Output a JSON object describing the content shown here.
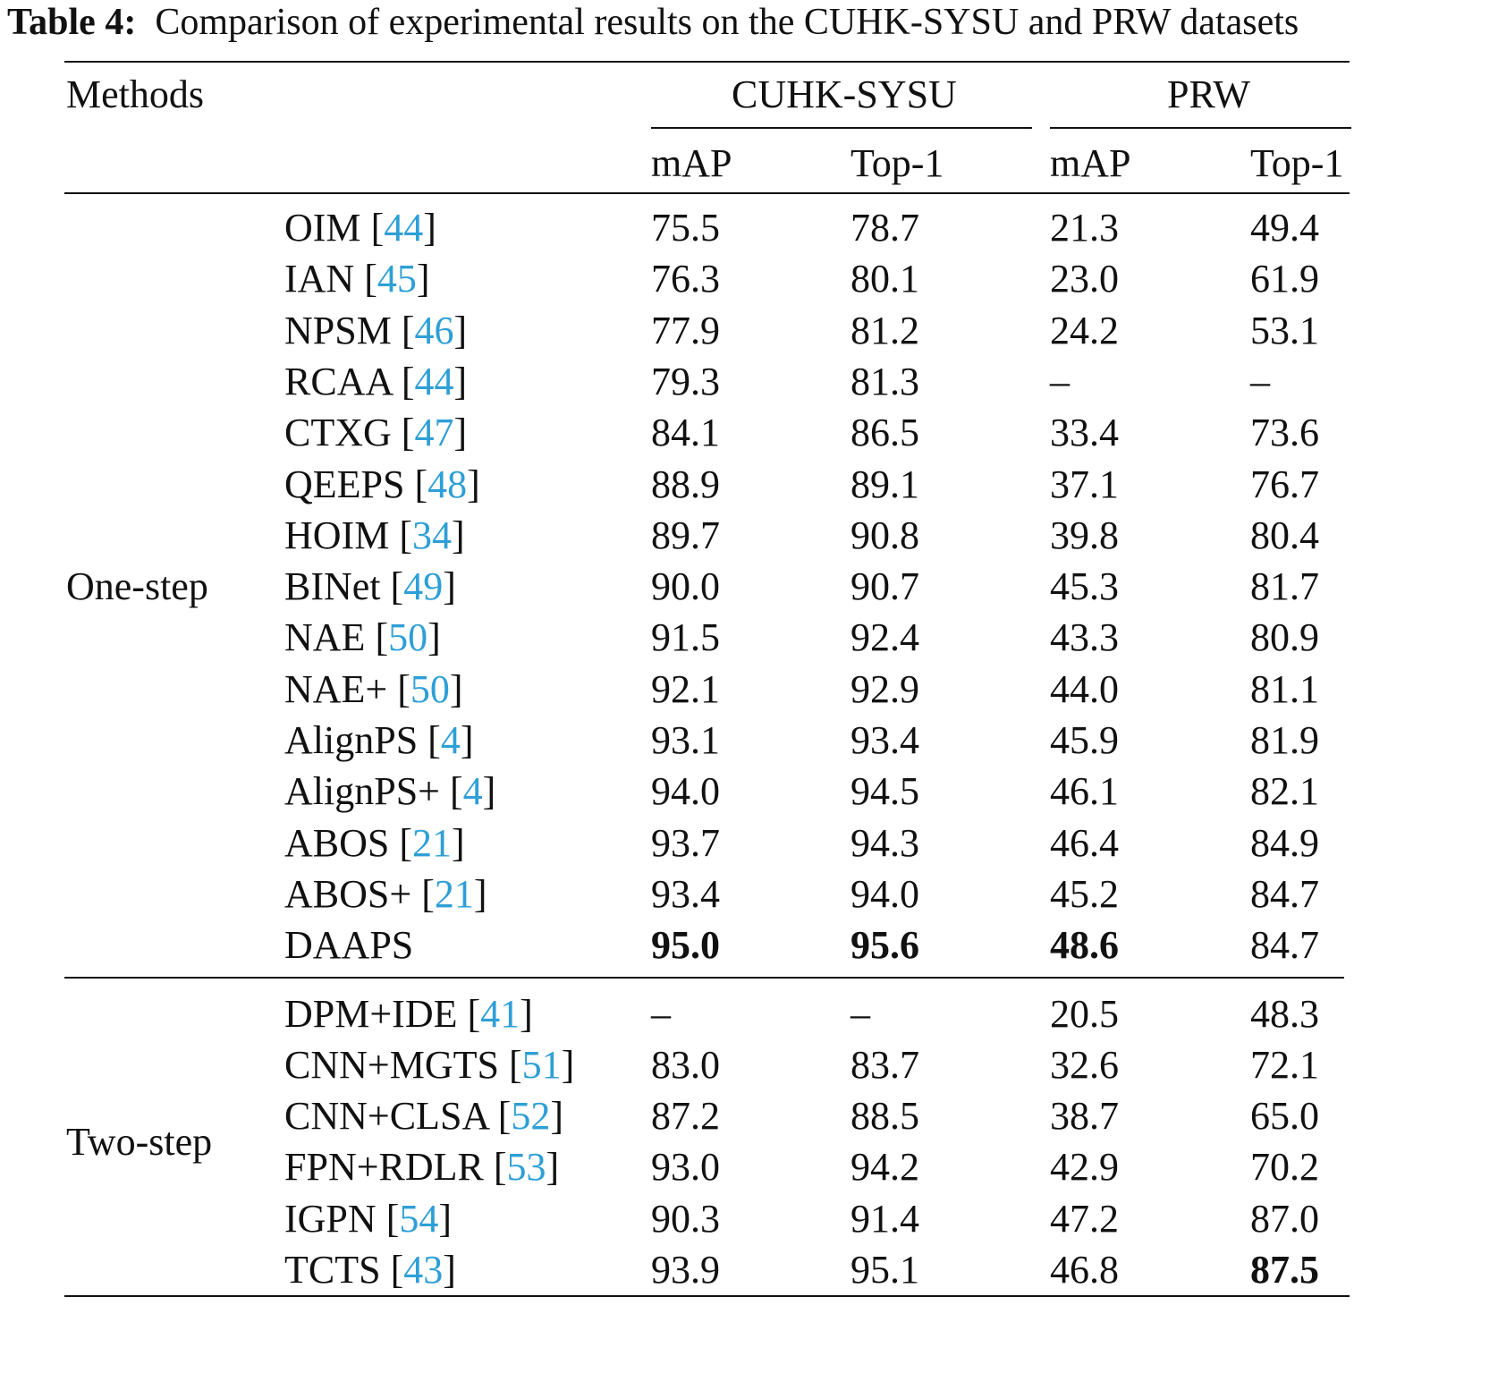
{
  "caption": {
    "label": "Table 4:",
    "text": "Comparison of experimental results on the CUHK-SYSU and PRW datasets"
  },
  "header": {
    "methods": "Methods",
    "dataset1": "CUHK-SYSU",
    "dataset2": "PRW",
    "map": "mAP",
    "top1": "Top-1"
  },
  "groups": [
    {
      "name": "One-step",
      "rows": [
        {
          "method": "OIM",
          "ref": "44",
          "c_map": "75.5",
          "c_top1": "78.7",
          "p_map": "21.3",
          "p_top1": "49.4"
        },
        {
          "method": "IAN",
          "ref": "45",
          "c_map": "76.3",
          "c_top1": "80.1",
          "p_map": "23.0",
          "p_top1": "61.9"
        },
        {
          "method": "NPSM",
          "ref": "46",
          "c_map": "77.9",
          "c_top1": "81.2",
          "p_map": "24.2",
          "p_top1": "53.1"
        },
        {
          "method": "RCAA",
          "ref": "44",
          "c_map": "79.3",
          "c_top1": "81.3",
          "p_map": "–",
          "p_top1": "–"
        },
        {
          "method": "CTXG",
          "ref": "47",
          "c_map": "84.1",
          "c_top1": "86.5",
          "p_map": "33.4",
          "p_top1": "73.6"
        },
        {
          "method": "QEEPS",
          "ref": "48",
          "c_map": "88.9",
          "c_top1": "89.1",
          "p_map": "37.1",
          "p_top1": "76.7"
        },
        {
          "method": "HOIM",
          "ref": "34",
          "c_map": "89.7",
          "c_top1": "90.8",
          "p_map": "39.8",
          "p_top1": "80.4"
        },
        {
          "method": "BINet",
          "ref": "49",
          "c_map": "90.0",
          "c_top1": "90.7",
          "p_map": "45.3",
          "p_top1": "81.7"
        },
        {
          "method": "NAE",
          "ref": "50",
          "c_map": "91.5",
          "c_top1": "92.4",
          "p_map": "43.3",
          "p_top1": "80.9"
        },
        {
          "method": "NAE+",
          "ref": "50",
          "c_map": "92.1",
          "c_top1": "92.9",
          "p_map": "44.0",
          "p_top1": "81.1"
        },
        {
          "method": "AlignPS",
          "ref": "4",
          "c_map": "93.1",
          "c_top1": "93.4",
          "p_map": "45.9",
          "p_top1": "81.9"
        },
        {
          "method": "AlignPS+",
          "ref": "4",
          "c_map": "94.0",
          "c_top1": "94.5",
          "p_map": "46.1",
          "p_top1": "82.1"
        },
        {
          "method": "ABOS",
          "ref": "21",
          "c_map": "93.7",
          "c_top1": "94.3",
          "p_map": "46.4",
          "p_top1": "84.9"
        },
        {
          "method": "ABOS+",
          "ref": "21",
          "c_map": "93.4",
          "c_top1": "94.0",
          "p_map": "45.2",
          "p_top1": "84.7"
        },
        {
          "method": "DAAPS",
          "ref": "",
          "c_map": "95.0",
          "c_top1": "95.6",
          "p_map": "48.6",
          "p_top1": "84.7",
          "bold": [
            "c_map",
            "c_top1",
            "p_map"
          ]
        }
      ]
    },
    {
      "name": "Two-step",
      "rows": [
        {
          "method": "DPM+IDE",
          "ref": "41",
          "c_map": "–",
          "c_top1": "–",
          "p_map": "20.5",
          "p_top1": "48.3"
        },
        {
          "method": "CNN+MGTS",
          "ref": "51",
          "c_map": "83.0",
          "c_top1": "83.7",
          "p_map": "32.6",
          "p_top1": "72.1"
        },
        {
          "method": "CNN+CLSA",
          "ref": "52",
          "c_map": "87.2",
          "c_top1": "88.5",
          "p_map": "38.7",
          "p_top1": "65.0"
        },
        {
          "method": "FPN+RDLR",
          "ref": "53",
          "c_map": "93.0",
          "c_top1": "94.2",
          "p_map": "42.9",
          "p_top1": "70.2"
        },
        {
          "method": "IGPN",
          "ref": "54",
          "c_map": "90.3",
          "c_top1": "91.4",
          "p_map": "47.2",
          "p_top1": "87.0"
        },
        {
          "method": "TCTS",
          "ref": "43",
          "c_map": "93.9",
          "c_top1": "95.1",
          "p_map": "46.8",
          "p_top1": "87.5",
          "bold": [
            "p_top1"
          ]
        }
      ]
    }
  ]
}
